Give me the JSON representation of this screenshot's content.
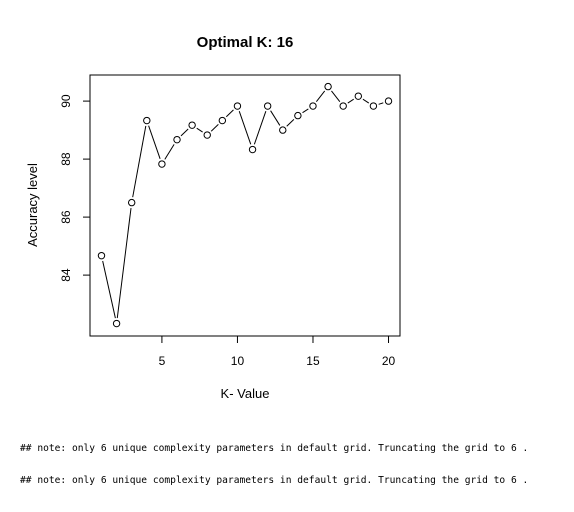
{
  "chart_data": {
    "type": "line",
    "title": "Optimal K: 16",
    "xlabel": "K- Value",
    "ylabel": "Accuracy level",
    "x": [
      1,
      2,
      3,
      4,
      5,
      6,
      7,
      8,
      9,
      10,
      11,
      12,
      13,
      14,
      15,
      16,
      17,
      18,
      19,
      20
    ],
    "series": [
      {
        "values": [
          84.67,
          82.33,
          86.5,
          89.33,
          87.83,
          88.67,
          89.17,
          88.83,
          89.33,
          89.83,
          88.33,
          89.83,
          89.0,
          89.5,
          89.83,
          90.5,
          89.83,
          90.17,
          89.83,
          90.0
        ]
      }
    ],
    "xticks": [
      "5",
      "10",
      "15",
      "20"
    ],
    "yticks": [
      "84",
      "86",
      "88",
      "90"
    ],
    "xlim": [
      0.24,
      20.76
    ],
    "ylim": [
      81.9,
      90.9
    ],
    "line_style": "b",
    "marker": "open-circle",
    "grid": false,
    "legend": "none"
  },
  "console": {
    "notes": [
      "## note: only 6 unique complexity parameters in default grid. Truncating the grid to 6 .",
      "## note: only 6 unique complexity parameters in default grid. Truncating the grid to 6 ."
    ]
  }
}
